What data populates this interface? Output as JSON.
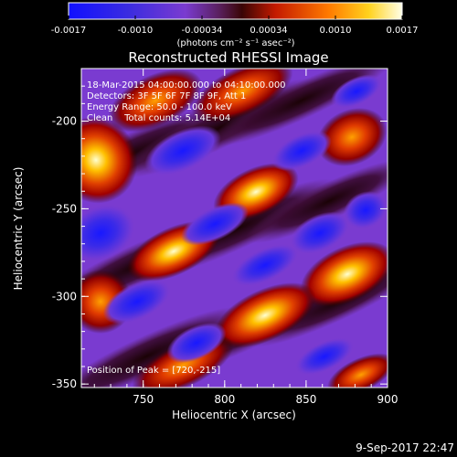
{
  "colorbar": {
    "tick_labels": [
      "-0.0017",
      "-0.0010",
      "-0.00034",
      "0.00034",
      "0.0010",
      "0.0017"
    ],
    "units": "(photons cm⁻² s⁻¹ asec⁻²)"
  },
  "title": "Reconstructed RHESSI Image",
  "info": {
    "line1": "18-Mar-2015 04:00:00.000 to 04:10:00.000",
    "line2": "Detectors: 3F 5F 6F 7F 8F 9F, Att 1",
    "line3": "Energy Range: 50.0 - 100.0 keV",
    "line4": "Clean    Total counts: 5.14E+04"
  },
  "peak_label": "Position of Peak = [720,-215]",
  "x_axis": {
    "label": "Heliocentric X (arcsec)",
    "ticks": [
      "750",
      "800",
      "850",
      "900"
    ],
    "range": [
      712,
      900
    ]
  },
  "y_axis": {
    "label": "Heliocentric Y (arcsec)",
    "ticks": [
      "-200",
      "-250",
      "-300",
      "-350"
    ],
    "range": [
      -352,
      -170
    ]
  },
  "footer_date": "9-Sep-2017 22:47",
  "colors": {
    "background": "#000000",
    "low": "#1a1aff",
    "mid_neg": "#7a3bd0",
    "mid_pos": "#c41a00",
    "high": "#ffffe8"
  }
}
